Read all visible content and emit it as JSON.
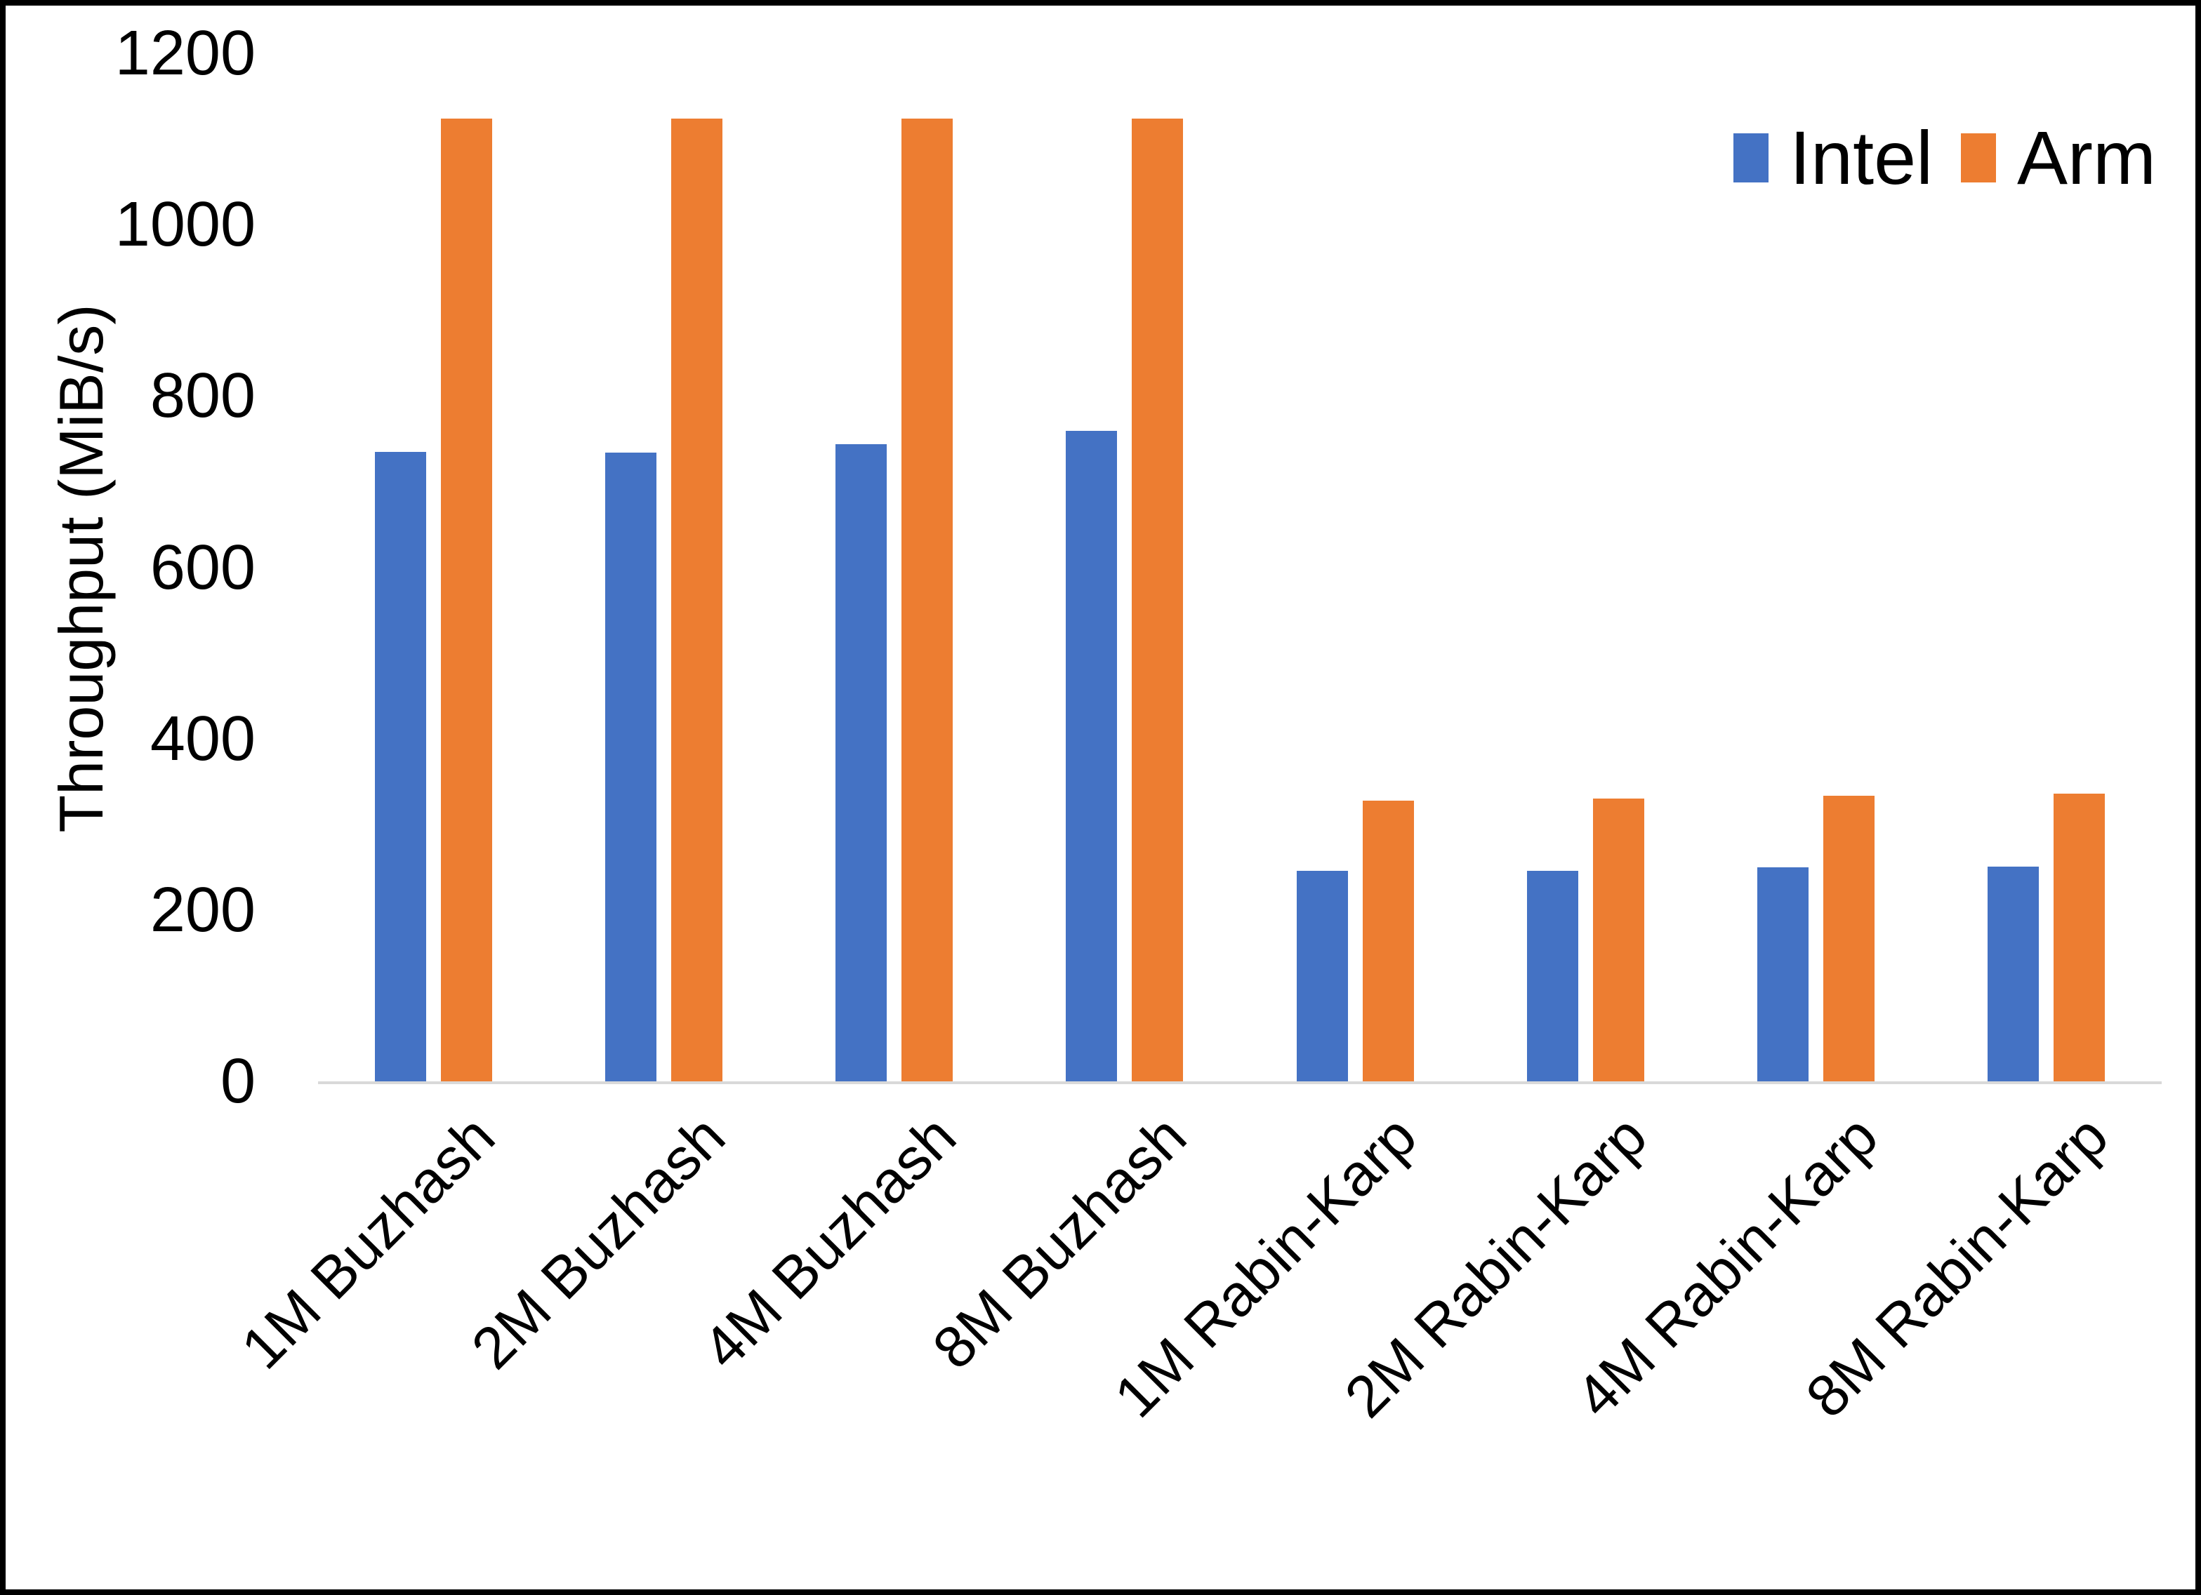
{
  "chart_data": {
    "type": "bar",
    "title": "",
    "categories": [
      "1M Buzhash",
      "2M Buzhash",
      "4M Buzhash",
      "8M Buzhash",
      "1M Rabin-Karp",
      "2M Rabin-Karp",
      "4M Rabin-Karp",
      "8M Rabin-Karp"
    ],
    "series": [
      {
        "name": "Intel",
        "color": "#4472C4",
        "values": [
          735,
          734,
          744,
          759,
          246,
          246,
          250,
          251
        ]
      },
      {
        "name": "Arm",
        "color": "#ED7D31",
        "values": [
          1124,
          1124,
          1124,
          1124,
          328,
          330,
          333,
          336
        ]
      }
    ],
    "xlabel": "",
    "ylabel": "Throughput (MiB/s)",
    "yticks": [
      0,
      200,
      400,
      600,
      800,
      1000,
      1200
    ],
    "ylim": [
      0,
      1200
    ],
    "grid": false,
    "legend_position": "top-right"
  },
  "legend": {
    "items": [
      {
        "label": "Intel",
        "color": "#4472C4"
      },
      {
        "label": "Arm",
        "color": "#ED7D31"
      }
    ]
  },
  "colors": {
    "intel": "#4472C4",
    "arm": "#ED7D31",
    "axis_line": "#D9D9D9",
    "text": "#000000",
    "background": "#FFFFFF",
    "frame_border": "#000000"
  }
}
